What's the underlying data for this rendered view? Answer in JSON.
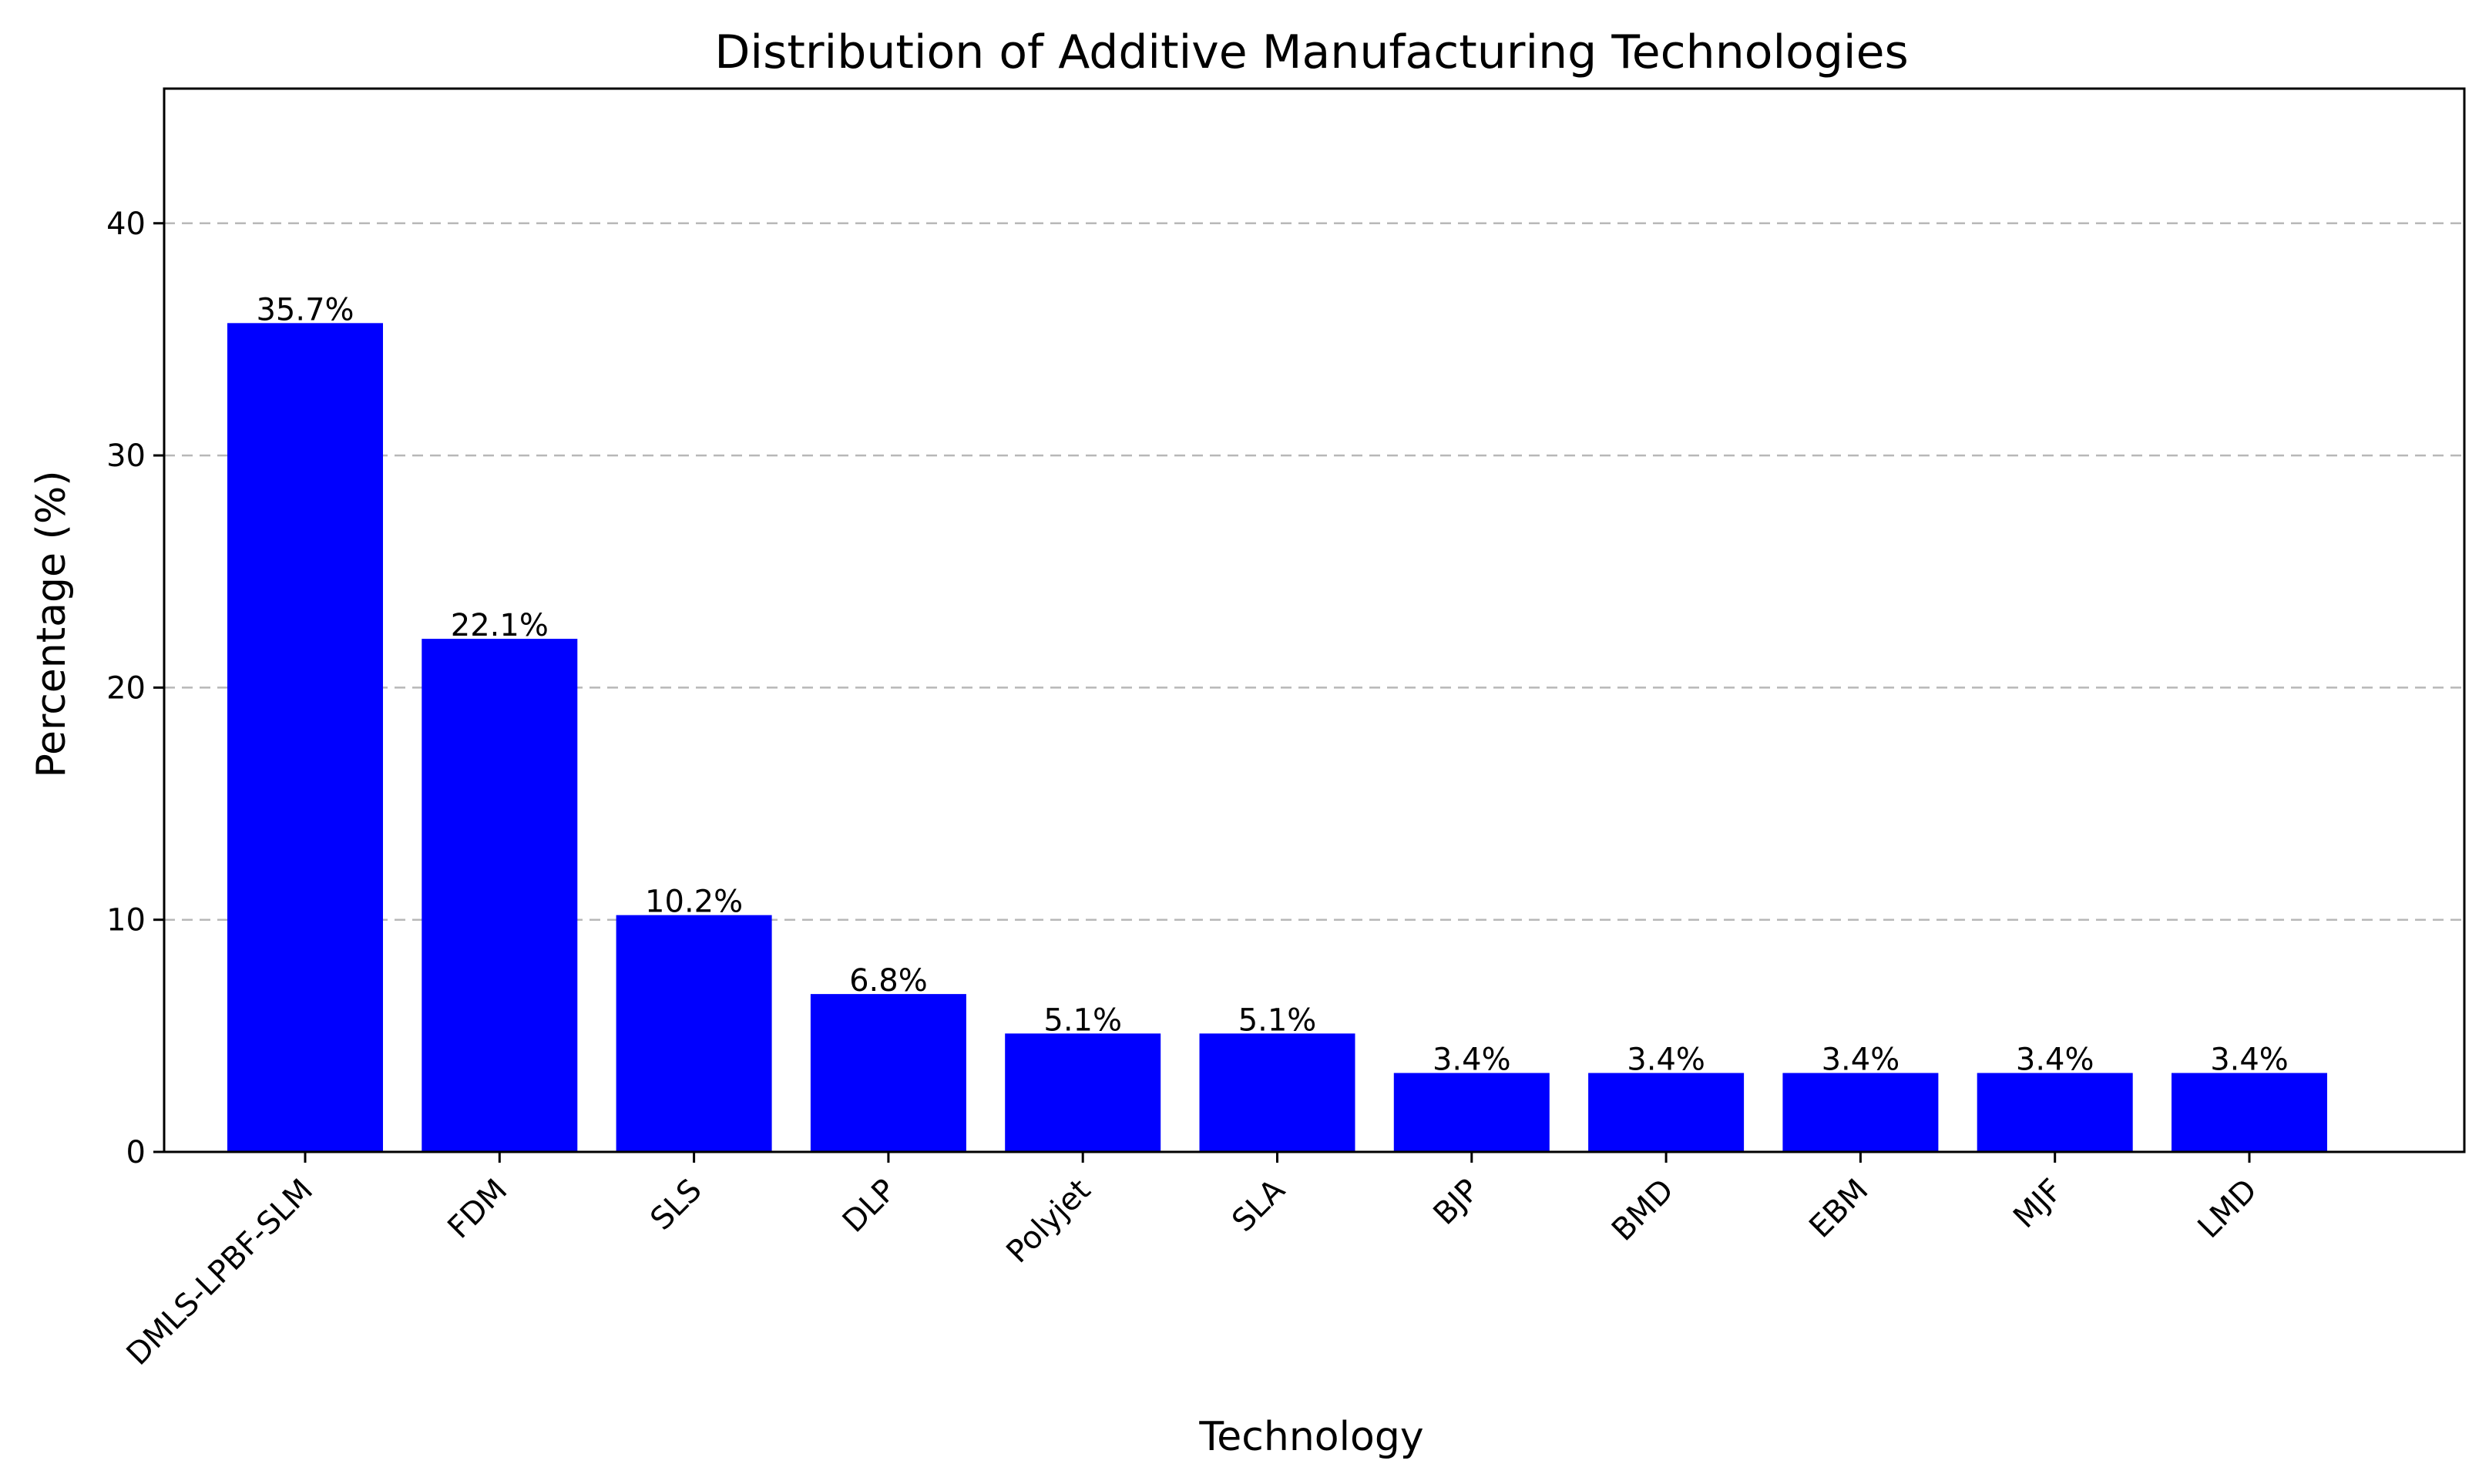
{
  "chart_data": {
    "type": "bar",
    "title": "Distribution of Additive Manufacturing Technologies",
    "xlabel": "Technology",
    "ylabel": "Percentage (%)",
    "categories": [
      "DMLS-LPBF-SLM",
      "FDM",
      "SLS",
      "DLP",
      "Polyjet",
      "SLA",
      "BJP",
      "BMD",
      "EBM",
      "MJF",
      "LMD"
    ],
    "values": [
      35.7,
      22.1,
      10.2,
      6.8,
      5.1,
      5.1,
      3.4,
      3.4,
      3.4,
      3.4,
      3.4
    ],
    "data_labels": [
      "35.7%",
      "22.1%",
      "10.2%",
      "6.8%",
      "5.1%",
      "5.1%",
      "3.4%",
      "3.4%",
      "3.4%",
      "3.4%",
      "3.4%"
    ],
    "yticks": [
      0,
      10,
      20,
      30,
      40
    ],
    "ylim": [
      0,
      45.8
    ],
    "grid": "y-dashed",
    "bar_color": "#0000ff",
    "grid_color": "#b8b8b8"
  }
}
